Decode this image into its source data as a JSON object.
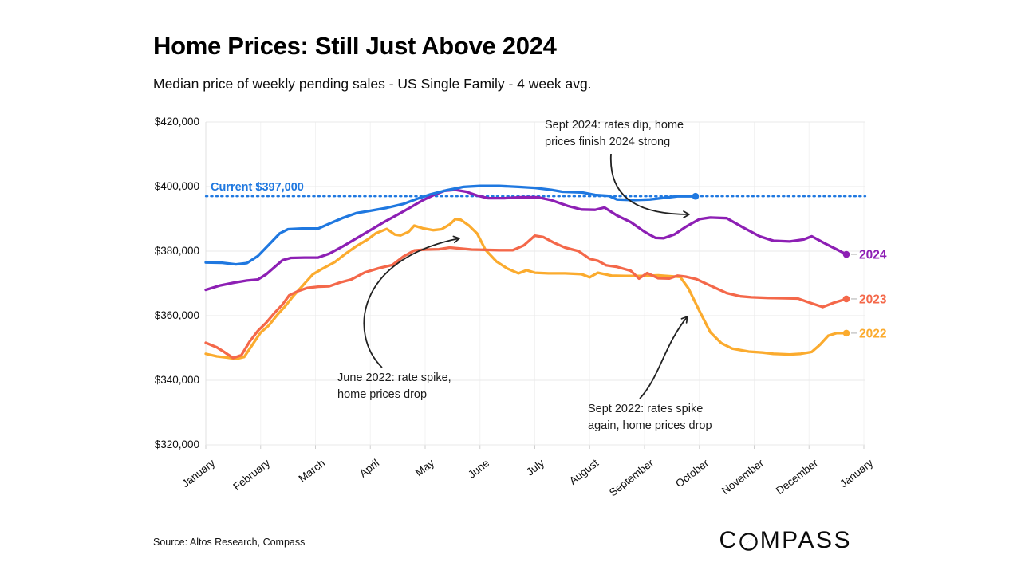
{
  "header": {
    "title": "Home Prices: Still Just Above 2024",
    "subtitle": "Median price of weekly pending sales - US Single Family - 4 week avg."
  },
  "footer": {
    "source": "Source: Altos Research, Compass",
    "logo_prefix": "C",
    "logo_suffix": "MPASS"
  },
  "chart_data": {
    "type": "line",
    "title": "Home Prices: Still Just Above 2024",
    "subtitle": "Median price of weekly pending sales - US Single Family - 4 week avg.",
    "unit": "USD thousands",
    "x_unit": "month index (0 = January, 12 = next January)",
    "ylim": [
      320,
      420
    ],
    "grid": true,
    "legend_position": "line-end-labels-right",
    "y_ticks": [
      {
        "value": 420,
        "label": "$420,000"
      },
      {
        "value": 400,
        "label": "$400,000"
      },
      {
        "value": 380,
        "label": "$380,000"
      },
      {
        "value": 360,
        "label": "$360,000"
      },
      {
        "value": 340,
        "label": "$340,000"
      },
      {
        "value": 320,
        "label": "$320,000"
      }
    ],
    "x_ticks": [
      "January",
      "February",
      "March",
      "April",
      "May",
      "June",
      "July",
      "August",
      "September",
      "October",
      "November",
      "December",
      "January"
    ],
    "current_line": {
      "label": "Current $397,000",
      "value": 397,
      "style": "dotted",
      "color": "#1f78e0"
    },
    "series": [
      {
        "name": "2022",
        "label": "2022",
        "color": "#fbab2e",
        "end_dot": true,
        "points": [
          [
            0,
            348.2
          ],
          [
            0.2,
            347.4
          ],
          [
            0.4,
            347
          ],
          [
            0.55,
            346.6
          ],
          [
            0.7,
            347.2
          ],
          [
            0.85,
            351
          ],
          [
            1.0,
            354.8
          ],
          [
            1.15,
            357
          ],
          [
            1.3,
            360.2
          ],
          [
            1.45,
            363
          ],
          [
            1.6,
            366.2
          ],
          [
            1.75,
            369
          ],
          [
            1.95,
            372.8
          ],
          [
            2.1,
            374.3
          ],
          [
            2.35,
            376.6
          ],
          [
            2.55,
            379.2
          ],
          [
            2.75,
            381.6
          ],
          [
            2.95,
            383.6
          ],
          [
            3.1,
            385.5
          ],
          [
            3.3,
            386.9
          ],
          [
            3.45,
            385.1
          ],
          [
            3.55,
            384.9
          ],
          [
            3.7,
            386
          ],
          [
            3.8,
            387.9
          ],
          [
            3.95,
            387.1
          ],
          [
            4.15,
            386.5
          ],
          [
            4.3,
            386.8
          ],
          [
            4.45,
            388.3
          ],
          [
            4.55,
            389.9
          ],
          [
            4.65,
            389.7
          ],
          [
            4.8,
            387.9
          ],
          [
            4.95,
            385.4
          ],
          [
            5.1,
            380.4
          ],
          [
            5.3,
            376.8
          ],
          [
            5.5,
            374.6
          ],
          [
            5.7,
            373.1
          ],
          [
            5.85,
            374.1
          ],
          [
            6.0,
            373.3
          ],
          [
            6.25,
            373.1
          ],
          [
            6.55,
            373.1
          ],
          [
            6.85,
            372.9
          ],
          [
            7.0,
            371.9
          ],
          [
            7.15,
            373.3
          ],
          [
            7.4,
            372.4
          ],
          [
            7.65,
            372.3
          ],
          [
            7.95,
            372.3
          ],
          [
            8.25,
            372.5
          ],
          [
            8.5,
            372.2
          ],
          [
            8.65,
            372
          ],
          [
            8.8,
            368.5
          ],
          [
            9.0,
            361.5
          ],
          [
            9.2,
            354.9
          ],
          [
            9.4,
            351.5
          ],
          [
            9.6,
            349.8
          ],
          [
            9.9,
            348.9
          ],
          [
            10.15,
            348.6
          ],
          [
            10.35,
            348.2
          ],
          [
            10.65,
            348
          ],
          [
            10.85,
            348.2
          ],
          [
            11.05,
            348.8
          ],
          [
            11.2,
            351
          ],
          [
            11.35,
            353.8
          ],
          [
            11.5,
            354.6
          ],
          [
            11.68,
            354.6
          ]
        ]
      },
      {
        "name": "2023",
        "label": "2023",
        "color": "#f4684a",
        "end_dot": true,
        "points": [
          [
            0,
            351.6
          ],
          [
            0.2,
            350.2
          ],
          [
            0.35,
            348.6
          ],
          [
            0.5,
            346.9
          ],
          [
            0.65,
            347.8
          ],
          [
            0.8,
            352
          ],
          [
            0.95,
            355.3
          ],
          [
            1.1,
            357.8
          ],
          [
            1.25,
            360.8
          ],
          [
            1.4,
            363.5
          ],
          [
            1.52,
            366.3
          ],
          [
            1.68,
            367.6
          ],
          [
            1.85,
            368.6
          ],
          [
            2.05,
            369
          ],
          [
            2.25,
            369.1
          ],
          [
            2.45,
            370.3
          ],
          [
            2.65,
            371.2
          ],
          [
            2.9,
            373.4
          ],
          [
            3.15,
            374.7
          ],
          [
            3.4,
            375.7
          ],
          [
            3.6,
            378.3
          ],
          [
            3.8,
            380.2
          ],
          [
            4.0,
            380.5
          ],
          [
            4.25,
            380.6
          ],
          [
            4.45,
            381.1
          ],
          [
            4.65,
            380.8
          ],
          [
            4.85,
            380.5
          ],
          [
            5.1,
            380.4
          ],
          [
            5.35,
            380.3
          ],
          [
            5.6,
            380.3
          ],
          [
            5.8,
            381.8
          ],
          [
            6.0,
            384.8
          ],
          [
            6.15,
            384.4
          ],
          [
            6.35,
            382.6
          ],
          [
            6.55,
            381.1
          ],
          [
            6.8,
            380
          ],
          [
            7.0,
            377.6
          ],
          [
            7.15,
            377
          ],
          [
            7.3,
            375.6
          ],
          [
            7.5,
            375.1
          ],
          [
            7.75,
            373.9
          ],
          [
            7.9,
            371.5
          ],
          [
            8.05,
            373.2
          ],
          [
            8.25,
            371.6
          ],
          [
            8.45,
            371.5
          ],
          [
            8.6,
            372.4
          ],
          [
            8.75,
            372.1
          ],
          [
            8.95,
            371.3
          ],
          [
            9.2,
            369.3
          ],
          [
            9.5,
            367
          ],
          [
            9.75,
            366
          ],
          [
            9.95,
            365.7
          ],
          [
            10.25,
            365.5
          ],
          [
            10.55,
            365.4
          ],
          [
            10.8,
            365.3
          ],
          [
            10.95,
            364.4
          ],
          [
            11.25,
            362.7
          ],
          [
            11.45,
            364
          ],
          [
            11.68,
            365.2
          ]
        ]
      },
      {
        "name": "2024",
        "label": "2024",
        "color": "#8d1fb4",
        "end_dot": true,
        "points": [
          [
            0,
            368
          ],
          [
            0.25,
            369.3
          ],
          [
            0.5,
            370.2
          ],
          [
            0.75,
            370.9
          ],
          [
            0.95,
            371.2
          ],
          [
            1.1,
            372.8
          ],
          [
            1.25,
            375
          ],
          [
            1.4,
            377.2
          ],
          [
            1.55,
            377.9
          ],
          [
            1.8,
            378
          ],
          [
            2.05,
            378
          ],
          [
            2.25,
            379.2
          ],
          [
            2.5,
            381.5
          ],
          [
            2.75,
            384
          ],
          [
            3.0,
            386.5
          ],
          [
            3.25,
            389
          ],
          [
            3.5,
            391.3
          ],
          [
            3.75,
            393.7
          ],
          [
            3.95,
            395.7
          ],
          [
            4.15,
            397.3
          ],
          [
            4.35,
            398.7
          ],
          [
            4.55,
            399
          ],
          [
            4.75,
            398.4
          ],
          [
            4.95,
            397.2
          ],
          [
            5.15,
            396.4
          ],
          [
            5.45,
            396.4
          ],
          [
            5.75,
            396.7
          ],
          [
            6.05,
            396.7
          ],
          [
            6.3,
            395.8
          ],
          [
            6.6,
            394
          ],
          [
            6.85,
            392.9
          ],
          [
            7.1,
            392.8
          ],
          [
            7.27,
            393.5
          ],
          [
            7.5,
            391
          ],
          [
            7.75,
            389
          ],
          [
            8.0,
            386
          ],
          [
            8.2,
            384.1
          ],
          [
            8.35,
            384
          ],
          [
            8.55,
            385.2
          ],
          [
            8.75,
            387.5
          ],
          [
            9.0,
            389.9
          ],
          [
            9.2,
            390.4
          ],
          [
            9.5,
            390.2
          ],
          [
            9.8,
            387.3
          ],
          [
            10.1,
            384.6
          ],
          [
            10.35,
            383.2
          ],
          [
            10.65,
            383
          ],
          [
            10.9,
            383.6
          ],
          [
            11.05,
            384.6
          ],
          [
            11.3,
            382.3
          ],
          [
            11.5,
            380.6
          ],
          [
            11.68,
            379
          ]
        ]
      },
      {
        "name": "Current",
        "label": null,
        "color": "#1f78e0",
        "end_dot": true,
        "points": [
          [
            0,
            376.5
          ],
          [
            0.3,
            376.4
          ],
          [
            0.55,
            375.9
          ],
          [
            0.75,
            376.3
          ],
          [
            0.95,
            378.5
          ],
          [
            1.15,
            382
          ],
          [
            1.35,
            385.5
          ],
          [
            1.5,
            386.8
          ],
          [
            1.75,
            387
          ],
          [
            2.05,
            387
          ],
          [
            2.25,
            388.5
          ],
          [
            2.5,
            390.3
          ],
          [
            2.75,
            391.8
          ],
          [
            3.0,
            392.5
          ],
          [
            3.3,
            393.4
          ],
          [
            3.6,
            394.6
          ],
          [
            3.85,
            396.2
          ],
          [
            4.1,
            397.6
          ],
          [
            4.4,
            398.9
          ],
          [
            4.7,
            399.9
          ],
          [
            5.0,
            400.2
          ],
          [
            5.35,
            400.2
          ],
          [
            5.7,
            399.9
          ],
          [
            6.0,
            399.6
          ],
          [
            6.3,
            399
          ],
          [
            6.5,
            398.4
          ],
          [
            6.85,
            398.2
          ],
          [
            7.1,
            397.4
          ],
          [
            7.35,
            397.1
          ],
          [
            7.5,
            396
          ],
          [
            7.8,
            395.8
          ],
          [
            8.1,
            396
          ],
          [
            8.4,
            396.6
          ],
          [
            8.6,
            397
          ],
          [
            8.93,
            397
          ]
        ]
      }
    ],
    "annotations": [
      {
        "line1": "Sept 2024: rates dip, home",
        "line2": "prices finish 2024 strong"
      },
      {
        "line1": "June 2022: rate spike,",
        "line2": "home prices drop"
      },
      {
        "line1": "Sept 2022: rates spike",
        "line2": "again, home prices drop"
      }
    ]
  }
}
